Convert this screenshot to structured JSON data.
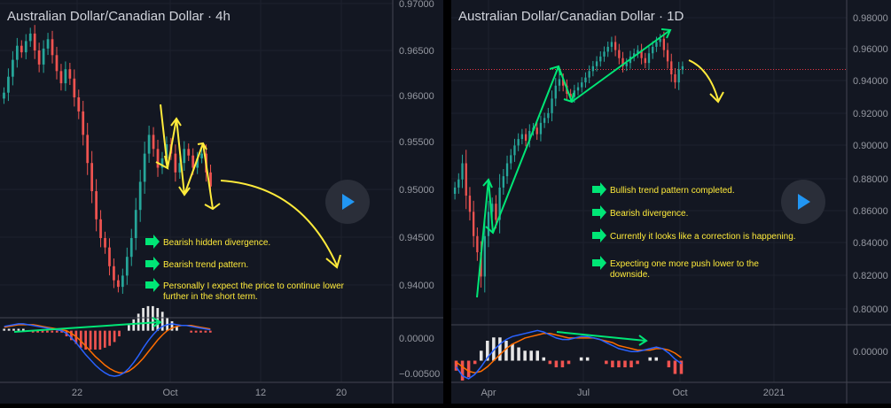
{
  "colors": {
    "background": "#131722",
    "grid": "#1e222d",
    "divider": "#434651",
    "up": "#26a69a",
    "down": "#ef5350",
    "macd_blue": "#2962ff",
    "macd_orange": "#ff6d00",
    "annotation_yellow": "#ffeb3b",
    "annotation_green": "#00e676",
    "price_line": "#f23645"
  },
  "chart_data": [
    {
      "type": "candlestick",
      "title": "Australian Dollar/Canadian Dollar · 4h",
      "y_ticks": [
        "0.97000",
        "0.96500",
        "0.96000",
        "0.95500",
        "0.95000",
        "0.94500",
        "0.94000"
      ],
      "ylim": [
        0.9385,
        0.97
      ],
      "x_ticks": [
        "22",
        "Oct",
        "12",
        "20"
      ],
      "close_series": [
        0.9605,
        0.9622,
        0.964,
        0.9655,
        0.9648,
        0.966,
        0.9668,
        0.965,
        0.9635,
        0.9652,
        0.9662,
        0.9645,
        0.9628,
        0.9615,
        0.963,
        0.962,
        0.96,
        0.9585,
        0.956,
        0.953,
        0.95,
        0.947,
        0.945,
        0.944,
        0.942,
        0.9405,
        0.9398,
        0.941,
        0.943,
        0.945,
        0.948,
        0.951,
        0.954,
        0.956,
        0.9545,
        0.9525,
        0.9535,
        0.955,
        0.954,
        0.952,
        0.953,
        0.9545,
        0.9538,
        0.9525,
        0.9535,
        0.954,
        0.952,
        0.9505
      ],
      "indicator": {
        "name": "MACD",
        "y_ticks": [
          "0.00000",
          "−0.00500"
        ],
        "ylim": [
          -0.0056,
          0.0012
        ],
        "macd": [
          0.0005,
          0.0006,
          0.0007,
          0.0008,
          0.0008,
          0.0007,
          0.0006,
          0.0005,
          0.0004,
          0.0003,
          0.0002,
          0.0001,
          0.0,
          -0.0003,
          -0.0008,
          -0.0014,
          -0.0021,
          -0.0028,
          -0.0034,
          -0.004,
          -0.0045,
          -0.0049,
          -0.0052,
          -0.0053,
          -0.0052,
          -0.0049,
          -0.0044,
          -0.0037,
          -0.0029,
          -0.002,
          -0.0012,
          -0.0005,
          0.0001,
          0.0005,
          0.0007,
          0.0008,
          0.0007,
          0.0006,
          0.0006,
          0.0005,
          0.0004,
          0.0003,
          0.0002,
          0.0001
        ],
        "signal": [
          0.0004,
          0.0005,
          0.0006,
          0.0007,
          0.0007,
          0.0007,
          0.0007,
          0.0006,
          0.0005,
          0.0004,
          0.0003,
          0.0002,
          0.0001,
          0.0,
          -0.0003,
          -0.0007,
          -0.0012,
          -0.0018,
          -0.0024,
          -0.003,
          -0.0035,
          -0.004,
          -0.0044,
          -0.0047,
          -0.0049,
          -0.0049,
          -0.0047,
          -0.0043,
          -0.0038,
          -0.0032,
          -0.0025,
          -0.0018,
          -0.0011,
          -0.0005,
          0.0,
          0.0003,
          0.0005,
          0.0006,
          0.0006,
          0.0006,
          0.0005,
          0.0004,
          0.0003,
          0.0002
        ]
      },
      "annotations": [
        "Bearish hidden divergence.",
        "Bearish trend pattern.",
        "Personally I expect the price to continue lower",
        "further in the short term."
      ]
    },
    {
      "type": "candlestick",
      "title": "Australian Dollar/Canadian Dollar · 1D",
      "y_ticks": [
        "0.98000",
        "0.96000",
        "0.94000",
        "0.92000",
        "0.90000",
        "0.88000",
        "0.86000",
        "0.84000",
        "0.82000",
        "0.80000"
      ],
      "ylim": [
        0.792,
        0.986
      ],
      "x_ticks": [
        "Apr",
        "Jul",
        "Oct",
        "2021"
      ],
      "close_series": [
        0.875,
        0.88,
        0.89,
        0.87,
        0.86,
        0.845,
        0.835,
        0.82,
        0.845,
        0.86,
        0.865,
        0.855,
        0.875,
        0.882,
        0.89,
        0.895,
        0.901,
        0.905,
        0.908,
        0.904,
        0.91,
        0.912,
        0.908,
        0.915,
        0.918,
        0.921,
        0.93,
        0.938,
        0.942,
        0.938,
        0.933,
        0.931,
        0.935,
        0.937,
        0.94,
        0.943,
        0.947,
        0.95,
        0.953,
        0.956,
        0.959,
        0.962,
        0.965,
        0.96,
        0.955,
        0.95,
        0.952,
        0.956,
        0.958,
        0.96,
        0.955,
        0.952,
        0.958,
        0.962,
        0.965,
        0.967,
        0.96,
        0.953,
        0.945,
        0.94,
        0.948,
        0.95
      ],
      "price_line": 0.948,
      "indicator": {
        "name": "MACD",
        "y_ticks": [
          "0.00000"
        ],
        "ylim": [
          -0.012,
          0.022
        ],
        "macd": [
          -0.004,
          -0.01,
          -0.012,
          -0.009,
          -0.004,
          0.002,
          0.007,
          0.011,
          0.014,
          0.016,
          0.017,
          0.018,
          0.019,
          0.02,
          0.019,
          0.017,
          0.015,
          0.014,
          0.014,
          0.015,
          0.016,
          0.016,
          0.015,
          0.014,
          0.012,
          0.01,
          0.008,
          0.007,
          0.006,
          0.006,
          0.007,
          0.008,
          0.009,
          0.008,
          0.005,
          0.001,
          -0.002
        ],
        "signal": [
          -0.001,
          -0.004,
          -0.007,
          -0.008,
          -0.007,
          -0.004,
          0.0,
          0.004,
          0.008,
          0.011,
          0.013,
          0.015,
          0.016,
          0.017,
          0.018,
          0.018,
          0.017,
          0.016,
          0.015,
          0.015,
          0.015,
          0.015,
          0.015,
          0.014,
          0.013,
          0.012,
          0.01,
          0.009,
          0.008,
          0.007,
          0.007,
          0.007,
          0.008,
          0.008,
          0.007,
          0.005,
          0.002
        ]
      },
      "annotations": [
        "Bullish trend pattern completed.",
        "Bearish divergence.",
        "Currently it looks like a correction is happening.",
        "Expecting one more push lower to the",
        "downside."
      ]
    }
  ],
  "play_button_icon": "play-icon"
}
